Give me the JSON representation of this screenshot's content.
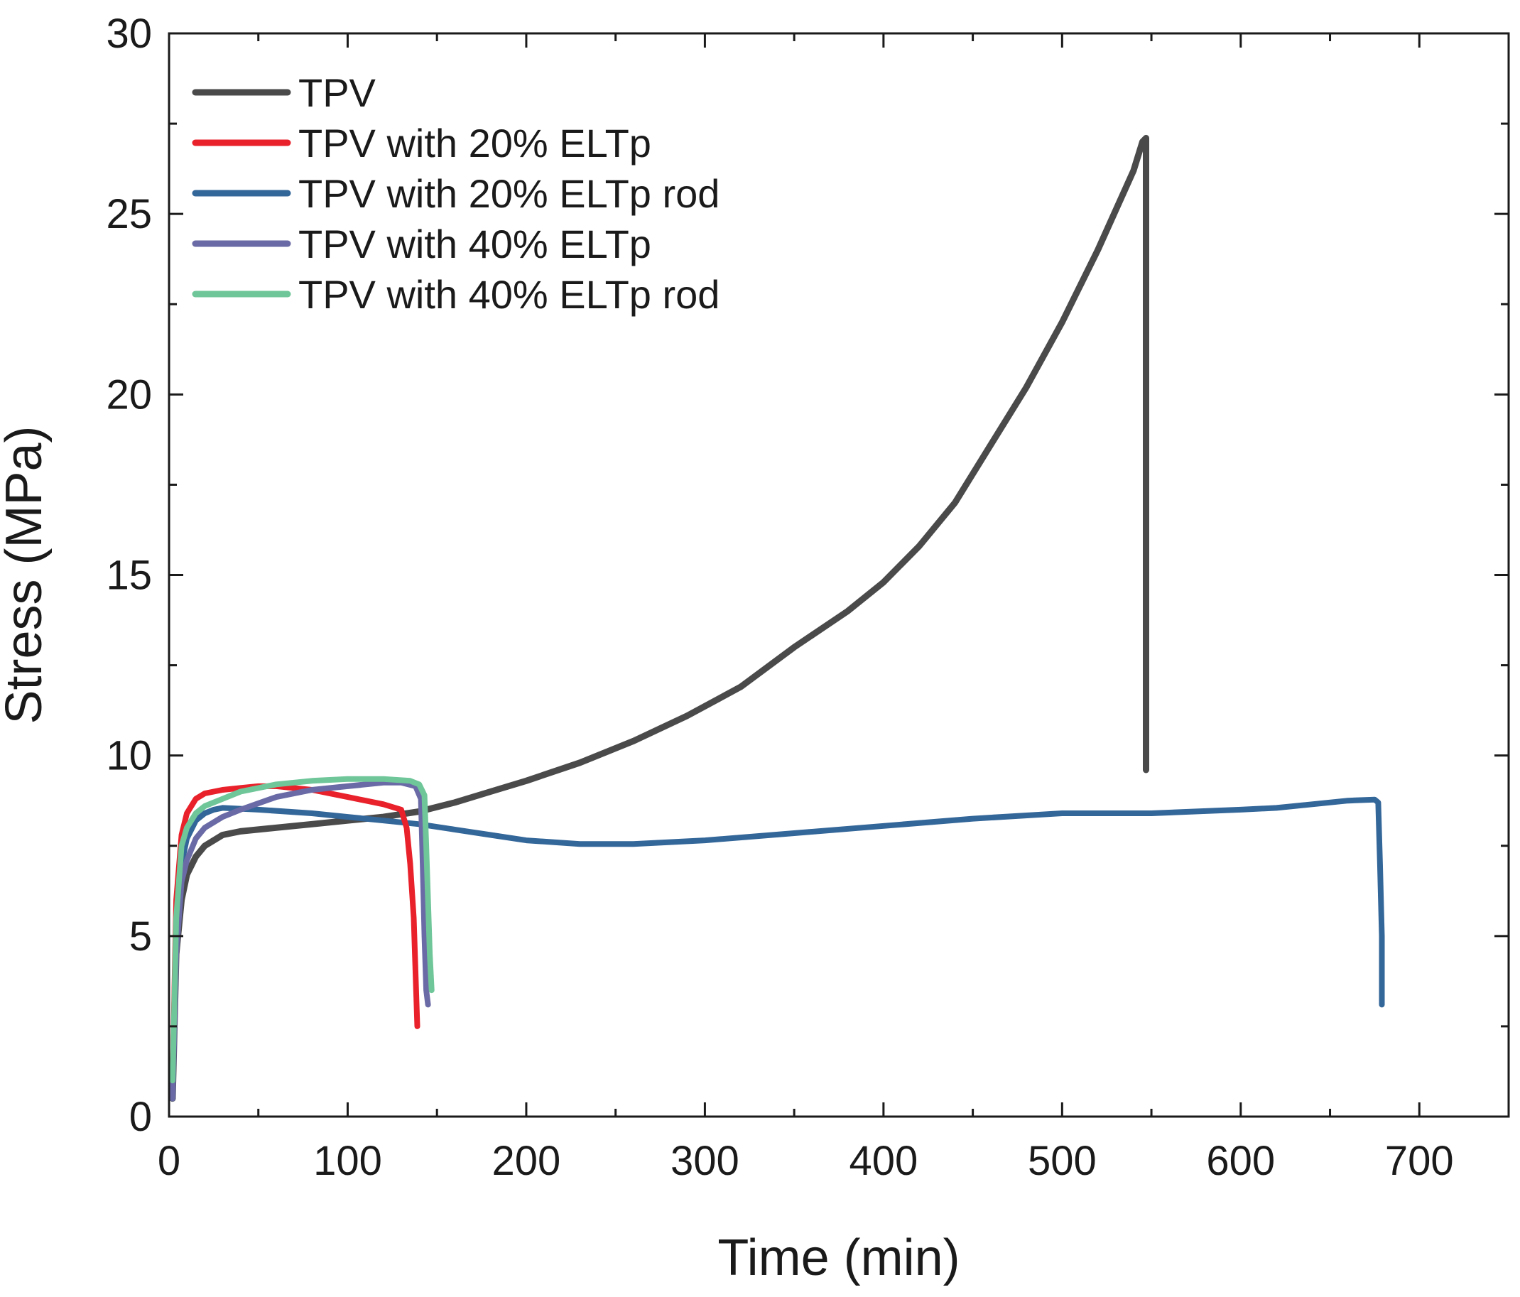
{
  "chart_data": {
    "type": "line",
    "title": "",
    "xlabel": "Time (min)",
    "ylabel": "Stress (MPa)",
    "xlim": [
      0,
      750
    ],
    "ylim": [
      0,
      30
    ],
    "xticks": [
      0,
      100,
      200,
      300,
      400,
      500,
      600,
      700
    ],
    "yticks": [
      0,
      5,
      10,
      15,
      20,
      25,
      30
    ],
    "grid": false,
    "legend_position": "top-left",
    "series": [
      {
        "name": "TPV",
        "color": "#4a4a4a",
        "x": [
          2,
          4,
          7,
          10,
          15,
          20,
          30,
          40,
          60,
          80,
          100,
          120,
          140,
          160,
          180,
          200,
          230,
          260,
          290,
          320,
          350,
          380,
          400,
          420,
          440,
          460,
          480,
          500,
          520,
          540,
          545,
          547,
          547
        ],
        "y": [
          0.5,
          4.5,
          6.0,
          6.7,
          7.2,
          7.5,
          7.8,
          7.9,
          8.0,
          8.1,
          8.2,
          8.3,
          8.45,
          8.7,
          9.0,
          9.3,
          9.8,
          10.4,
          11.1,
          11.9,
          13.0,
          14.0,
          14.8,
          15.8,
          17.0,
          18.6,
          20.2,
          22.0,
          24.0,
          26.2,
          27.0,
          27.1,
          9.6
        ]
      },
      {
        "name": "TPV with 20% ELTp",
        "color": "#e8212b",
        "x": [
          2,
          4,
          7,
          10,
          15,
          20,
          30,
          40,
          50,
          60,
          80,
          100,
          120,
          130,
          133,
          135,
          137,
          138,
          139
        ],
        "y": [
          1.0,
          6.0,
          7.8,
          8.4,
          8.8,
          8.95,
          9.05,
          9.1,
          9.15,
          9.15,
          9.05,
          8.85,
          8.65,
          8.5,
          8.0,
          7.0,
          5.5,
          4.0,
          2.5
        ]
      },
      {
        "name": "TPV with 20% ELTp rod",
        "color": "#336699",
        "x": [
          2,
          4,
          7,
          10,
          15,
          20,
          25,
          30,
          50,
          80,
          100,
          120,
          140,
          160,
          180,
          200,
          230,
          260,
          300,
          350,
          400,
          450,
          500,
          550,
          600,
          620,
          640,
          660,
          675,
          677,
          678,
          679,
          679
        ],
        "y": [
          0.5,
          5.0,
          7.0,
          7.7,
          8.2,
          8.4,
          8.5,
          8.55,
          8.5,
          8.4,
          8.3,
          8.2,
          8.1,
          7.95,
          7.8,
          7.65,
          7.55,
          7.55,
          7.65,
          7.85,
          8.05,
          8.25,
          8.4,
          8.4,
          8.5,
          8.55,
          8.65,
          8.75,
          8.78,
          8.7,
          7.0,
          5.0,
          3.1
        ]
      },
      {
        "name": "TPV with 40% ELTp",
        "color": "#6a6aa6",
        "x": [
          2,
          4,
          7,
          10,
          15,
          20,
          30,
          40,
          60,
          80,
          100,
          120,
          130,
          138,
          141,
          142,
          143,
          144,
          145
        ],
        "y": [
          0.5,
          4.5,
          6.5,
          7.1,
          7.7,
          8.0,
          8.3,
          8.5,
          8.85,
          9.05,
          9.15,
          9.25,
          9.25,
          9.15,
          8.8,
          7.0,
          5.0,
          3.5,
          3.1
        ]
      },
      {
        "name": "TPV with 40% ELTp rod",
        "color": "#6fc699",
        "x": [
          2,
          4,
          7,
          10,
          15,
          20,
          30,
          40,
          60,
          80,
          100,
          120,
          135,
          140,
          143,
          144,
          145,
          146,
          147
        ],
        "y": [
          1.0,
          5.5,
          7.5,
          8.0,
          8.4,
          8.6,
          8.8,
          9.0,
          9.2,
          9.3,
          9.35,
          9.35,
          9.3,
          9.2,
          8.9,
          7.5,
          6.0,
          4.5,
          3.5
        ]
      }
    ]
  }
}
